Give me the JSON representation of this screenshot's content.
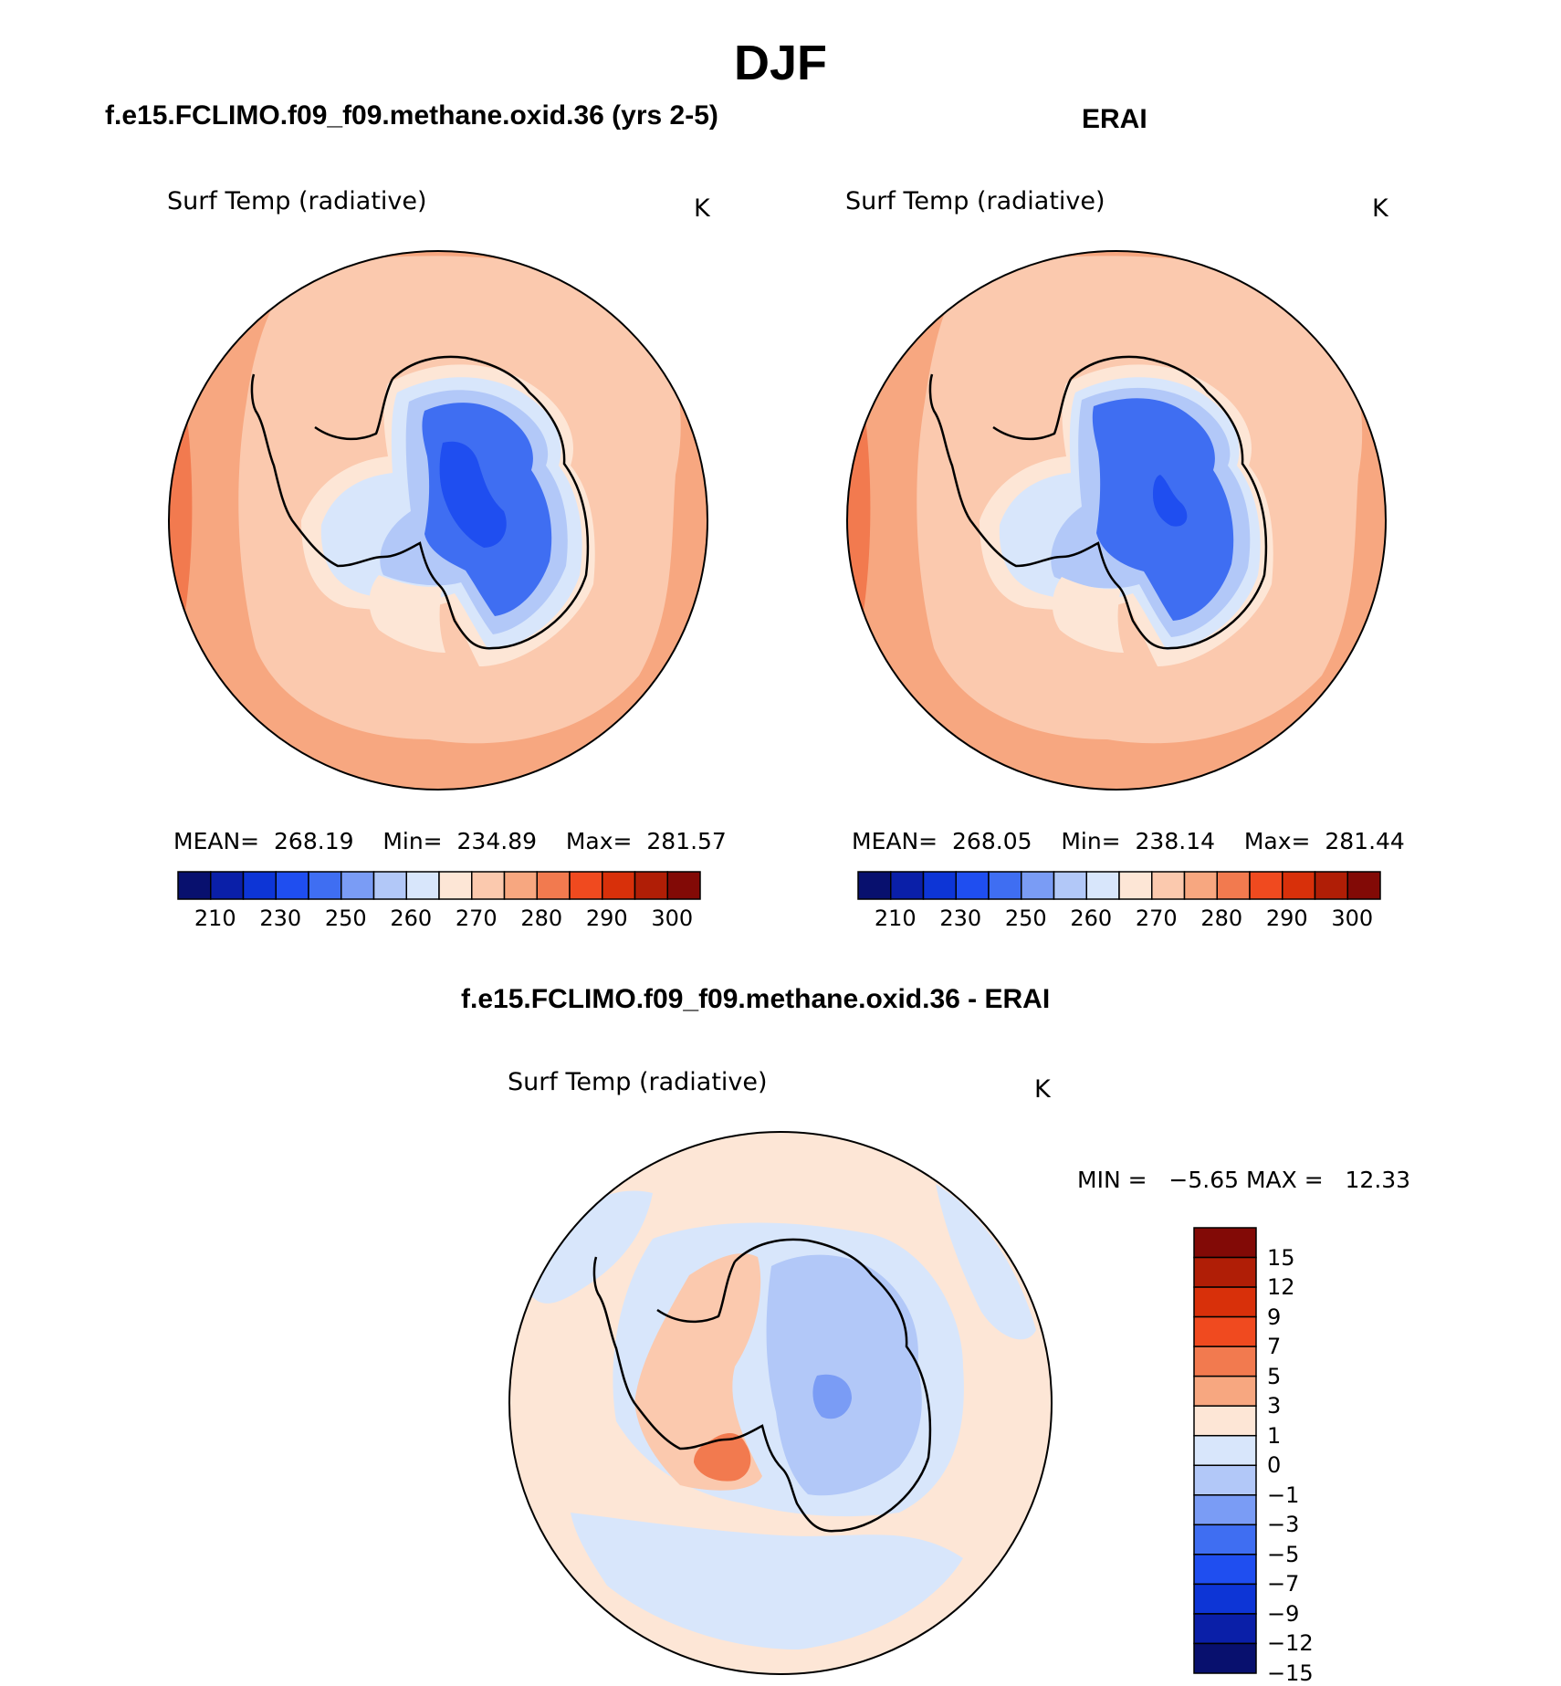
{
  "title": "DJF",
  "panels": [
    {
      "id": "model",
      "heading": "f.e15.FCLIMO.f09_f09.methane.oxid.36 (yrs 2-5)",
      "field_label": "Surf Temp (radiative)",
      "units": "K",
      "mean_label": "MEAN=",
      "mean": "268.19",
      "min_label": "Min=",
      "min": "234.89",
      "max_label": "Max=",
      "max": "281.57"
    },
    {
      "id": "obs",
      "heading": "ERAI",
      "field_label": "Surf Temp (radiative)",
      "units": "K",
      "mean_label": "MEAN=",
      "mean": "268.05",
      "min_label": "Min=",
      "min": "238.14",
      "max_label": "Max=",
      "max": "281.44"
    }
  ],
  "diff_panel": {
    "heading": "f.e15.FCLIMO.f09_f09.methane.oxid.36 - ERAI",
    "field_label": "Surf Temp (radiative)",
    "units": "K",
    "min_label": "MIN =",
    "min": "−5.65",
    "max_label": "MAX =",
    "max": "12.33"
  },
  "abs_colorbar": {
    "colors": [
      "#08106e",
      "#0a1fa8",
      "#0d35d6",
      "#1f4ef0",
      "#3f6ef2",
      "#7a9cf5",
      "#b2c8f8",
      "#d8e6fb",
      "#fde6d6",
      "#fbc9ae",
      "#f7a780",
      "#f27a4f",
      "#f04a1f",
      "#d8300a",
      "#b01e06",
      "#820a06"
    ],
    "tick_labels": [
      "210",
      "230",
      "250",
      "260",
      "270",
      "280",
      "290",
      "300"
    ]
  },
  "diff_colorbar": {
    "colors": [
      "#820a06",
      "#b01e06",
      "#d8300a",
      "#f04a1f",
      "#f27a4f",
      "#f7a780",
      "#fde6d6",
      "#d8e6fb",
      "#b2c8f8",
      "#7a9cf5",
      "#3f6ef2",
      "#1f4ef0",
      "#0d35d6",
      "#0a1fa8",
      "#08106e"
    ],
    "tick_labels": [
      "15",
      "12",
      "9",
      "7",
      "5",
      "3",
      "1",
      "0",
      "−1",
      "−3",
      "−5",
      "−7",
      "−9",
      "−12",
      "−15"
    ]
  },
  "map_colors": {
    "ocean_outer": "#fbc9ae",
    "ocean_rim": "#f7a780",
    "ocean_warm": "#f27a4f",
    "ice_edge": "#fde6d6",
    "ice_light": "#d8e6fb",
    "ice_mid": "#b2c8f8",
    "ice_blue": "#7a9cf5",
    "ice_deep": "#3f6ef2",
    "ice_core": "#1f4ef0",
    "diff_ocean": "#fde6d6",
    "diff_cool": "#d8e6fb",
    "diff_warm": "#fbc9ae",
    "diff_hot": "#f27a4f",
    "diff_neg": "#b2c8f8",
    "diff_neg2": "#7a9cf5"
  }
}
